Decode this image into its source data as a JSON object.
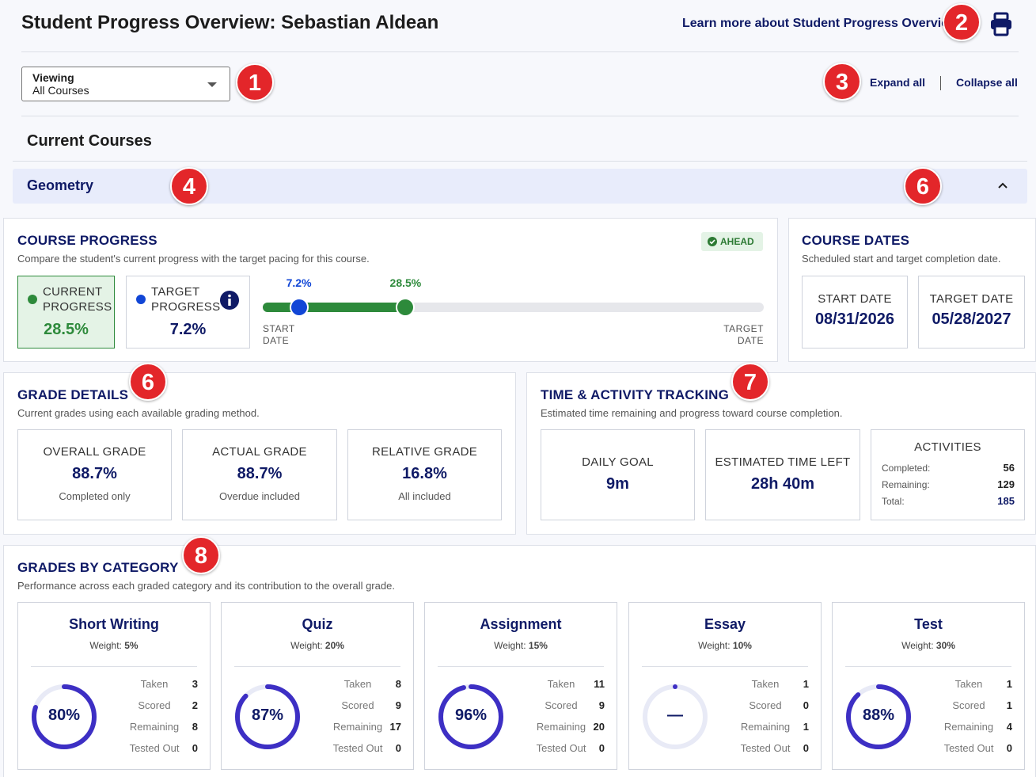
{
  "header": {
    "title": "Student Progress Overview: Sebastian Aldean",
    "learn_link": "Learn more about Student Progress Overview",
    "print_icon": "print-icon"
  },
  "viewing": {
    "label": "Viewing",
    "value": "All Courses"
  },
  "controls": {
    "expand_all": "Expand all",
    "collapse_all": "Collapse all"
  },
  "section_title": "Current Courses",
  "course": {
    "name": "Geometry"
  },
  "badges": [
    "1",
    "2",
    "3",
    "4",
    "6",
    "6",
    "7",
    "8"
  ],
  "course_progress": {
    "title": "COURSE PROGRESS",
    "subtitle": "Compare the student's current progress with the target pacing for this course.",
    "status": "AHEAD",
    "current_label": "CURRENT PROGRESS",
    "current_value": "28.5%",
    "target_label": "TARGET PROGRESS",
    "target_value": "7.2%",
    "target_pct_label": "7.2%",
    "current_pct_label": "28.5%",
    "target_pct": 7.2,
    "current_pct": 28.5,
    "start_label": "START DATE",
    "end_label": "TARGET DATE",
    "colors": {
      "current": "#2d8a3b",
      "target": "#1146d6"
    }
  },
  "course_dates": {
    "title": "COURSE DATES",
    "subtitle": "Scheduled start and target completion date.",
    "start_label": "START DATE",
    "start_value": "08/31/2026",
    "target_label": "TARGET DATE",
    "target_value": "05/28/2027"
  },
  "grade_details": {
    "title": "GRADE DETAILS",
    "subtitle": "Current grades using each available grading method.",
    "items": [
      {
        "label": "OVERALL GRADE",
        "value": "88.7%",
        "note": "Completed only"
      },
      {
        "label": "ACTUAL GRADE",
        "value": "88.7%",
        "note": "Overdue included"
      },
      {
        "label": "RELATIVE GRADE",
        "value": "16.8%",
        "note": "All included"
      }
    ]
  },
  "time_tracking": {
    "title": "TIME & ACTIVITY TRACKING",
    "subtitle": "Estimated time remaining and progress toward course completion.",
    "daily_goal_label": "DAILY GOAL",
    "daily_goal_value": "9m",
    "time_left_label": "ESTIMATED TIME LEFT",
    "time_left_value": "28h 40m",
    "activities_label": "ACTIVITIES",
    "completed_label": "Completed:",
    "completed_value": "56",
    "remaining_label": "Remaining:",
    "remaining_value": "129",
    "total_label": "Total:",
    "total_value": "185"
  },
  "grades_by_category": {
    "title": "GRADES BY CATEGORY",
    "subtitle": "Performance across each graded category and its contribution to the overall grade.",
    "stat_labels": {
      "taken": "Taken",
      "scored": "Scored",
      "remaining": "Remaining",
      "tested_out": "Tested Out"
    },
    "ring_color": "#3d2fc4",
    "categories": [
      {
        "name": "Short Writing",
        "weight_label": "Weight:",
        "weight": "5%",
        "score": "80%",
        "pct": 80,
        "taken": "3",
        "scored": "2",
        "remaining": "8",
        "tested_out": "0"
      },
      {
        "name": "Quiz",
        "weight_label": "Weight:",
        "weight": "20%",
        "score": "87%",
        "pct": 87,
        "taken": "8",
        "scored": "9",
        "remaining": "17",
        "tested_out": "0"
      },
      {
        "name": "Assignment",
        "weight_label": "Weight:",
        "weight": "15%",
        "score": "96%",
        "pct": 96,
        "taken": "11",
        "scored": "9",
        "remaining": "20",
        "tested_out": "0"
      },
      {
        "name": "Essay",
        "weight_label": "Weight:",
        "weight": "10%",
        "score": "—",
        "pct": 0,
        "taken": "1",
        "scored": "0",
        "remaining": "1",
        "tested_out": "0"
      },
      {
        "name": "Test",
        "weight_label": "Weight:",
        "weight": "30%",
        "score": "88%",
        "pct": 88,
        "taken": "1",
        "scored": "1",
        "remaining": "4",
        "tested_out": "0"
      }
    ]
  }
}
